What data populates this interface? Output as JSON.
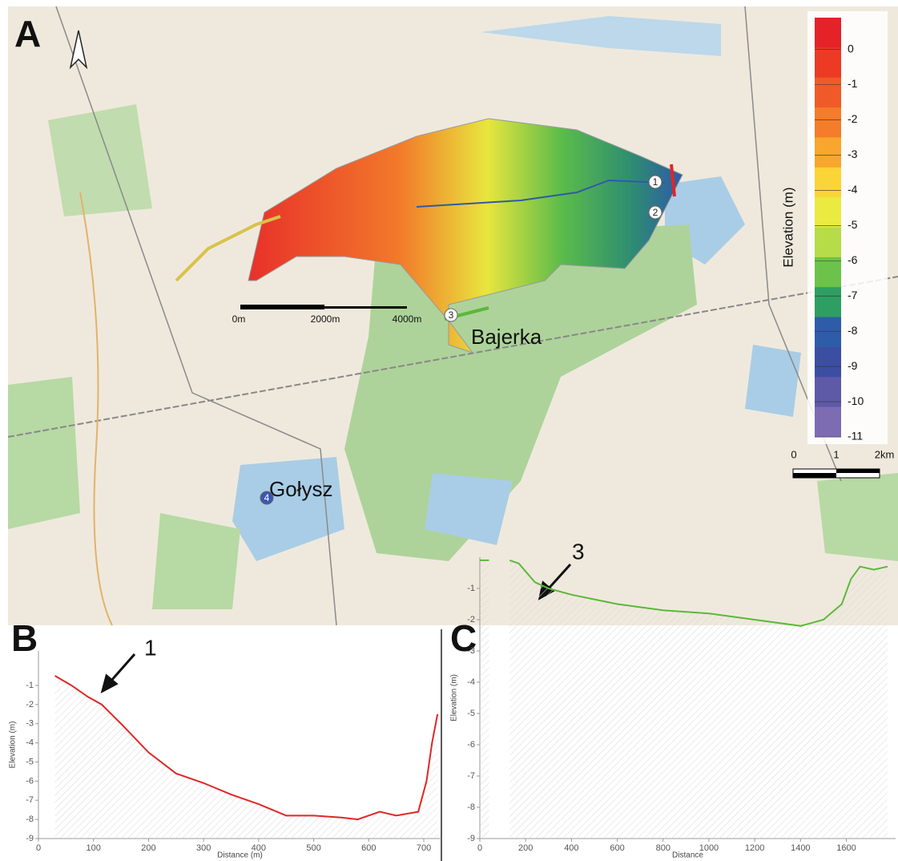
{
  "chart_data": [
    {
      "type": "map",
      "panel_label": "A",
      "places": [
        "Bajerka",
        "Gołysz"
      ],
      "markers": [
        "1",
        "2",
        "3",
        "4"
      ],
      "scale_bar_labels": [
        "0m",
        "2000m",
        "4000m"
      ],
      "scale_bar2_labels": [
        "0",
        "1",
        "2km"
      ],
      "colorbar": {
        "label": "Elevation (m)",
        "ylim": [
          -11,
          0.9
        ],
        "yticks": [
          0,
          -1,
          -2,
          -3,
          -4,
          -5,
          -6,
          -7,
          -8,
          -9,
          -10,
          -11
        ],
        "colors": [
          "#e52228",
          "#ec3a25",
          "#f05a28",
          "#f47c2a",
          "#f8a62d",
          "#fbd437",
          "#eaea40",
          "#b6dc48",
          "#6cc24a",
          "#2e9e62",
          "#2f5ca8",
          "#3c4ea2",
          "#5e5aa8",
          "#7e6cb2"
        ]
      }
    },
    {
      "type": "line",
      "panel_label": "B",
      "xlabel": "Distance (m)",
      "ylabel": "Elevation (m)",
      "annotation": "1",
      "xlim": [
        0,
        732
      ],
      "ylim": [
        -9,
        0.8
      ],
      "xticks": [
        0,
        100,
        200,
        300,
        400,
        500,
        600,
        700
      ],
      "yticks": [
        -1,
        -2,
        -3,
        -4,
        -5,
        -6,
        -7,
        -8,
        -9
      ],
      "series": [
        {
          "color": "#e02626",
          "x": [
            30,
            60,
            90,
            115,
            150,
            200,
            250,
            300,
            350,
            400,
            450,
            500,
            550,
            580,
            620,
            650,
            690,
            705,
            715,
            725
          ],
          "values": [
            -0.5,
            -1.0,
            -1.6,
            -2.0,
            -3.0,
            -4.5,
            -5.6,
            -6.1,
            -6.7,
            -7.2,
            -7.8,
            -7.8,
            -7.9,
            -8.0,
            -7.6,
            -7.8,
            -7.6,
            -6.0,
            -4.0,
            -2.5
          ]
        }
      ]
    },
    {
      "type": "line",
      "panel_label": "C",
      "xlabel": "Distance",
      "ylabel": "Elevation (m)",
      "annotation": "3",
      "xlim": [
        0,
        1815
      ],
      "ylim": [
        -9,
        0
      ],
      "xticks": [
        0,
        200,
        400,
        600,
        800,
        1000,
        1200,
        1400,
        1600
      ],
      "yticks": [
        -1,
        -2,
        -3,
        -4,
        -5,
        -6,
        -7,
        -8,
        -9
      ],
      "series": [
        {
          "color": "#5cb83a",
          "x": [
            0,
            40,
            80,
            130,
            170,
            240,
            300,
            400,
            600,
            800,
            1000,
            1200,
            1400,
            1500,
            1580,
            1620,
            1660,
            1720,
            1780
          ],
          "values": [
            -0.1,
            -0.1,
            null,
            -0.1,
            -0.2,
            -0.8,
            -1.0,
            -1.2,
            -1.5,
            -1.7,
            -1.8,
            -2.0,
            -2.2,
            -2.0,
            -1.5,
            -0.7,
            -0.3,
            -0.4,
            -0.3
          ]
        }
      ]
    }
  ]
}
